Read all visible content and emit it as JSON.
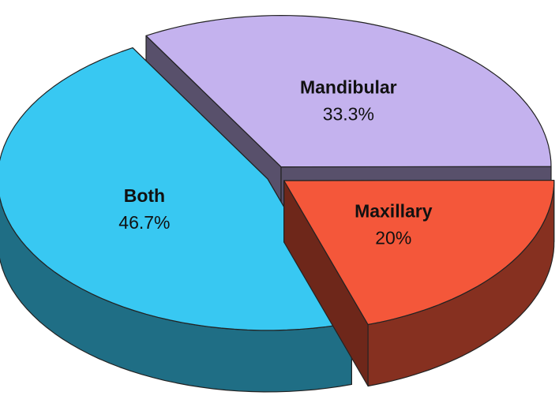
{
  "chart_data": {
    "type": "pie",
    "categories": [
      "Mandibular",
      "Maxillary",
      "Both"
    ],
    "values": [
      33.3,
      20,
      46.7
    ],
    "value_labels": [
      "33.3%",
      "20%",
      "46.7%"
    ],
    "colors": [
      "#c4b2ee",
      "#f4573a",
      "#38c8f2"
    ]
  }
}
